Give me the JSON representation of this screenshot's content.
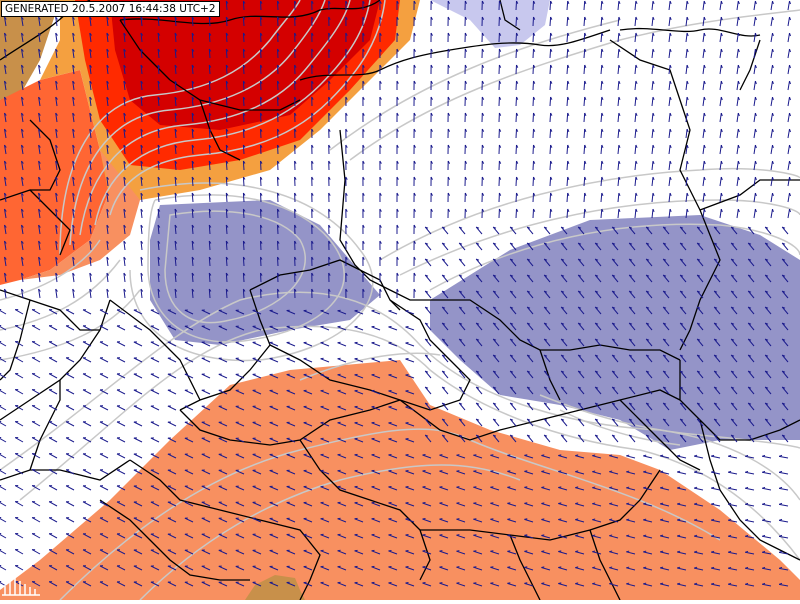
{
  "header": {
    "generated_text": "GENERATED 20.5.2007 16:44:38 UTC+2"
  },
  "colors": {
    "background": "#ffffff",
    "deep_red": "#d40000",
    "red": "#ff2a00",
    "orange_red": "#ff6633",
    "orange": "#f4a040",
    "salmon": "#f89060",
    "tan": "#c8904a",
    "blue_purple": "#9494c8",
    "light_lavender": "#c8c8ee",
    "isoline": "#c8c8c8",
    "border_lines": "#000000",
    "wind_arrows": "#1a1a8c"
  },
  "legend_icon": "scale-bar-icon"
}
